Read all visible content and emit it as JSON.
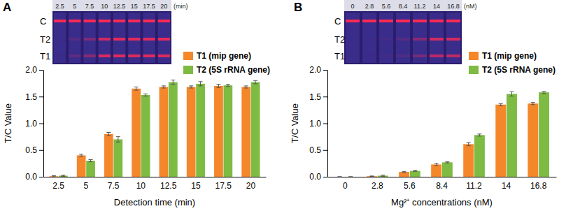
{
  "chart_data": [
    {
      "type": "bar",
      "title": "A",
      "x_label": "Detection time (min)",
      "y_label": "T/C Value",
      "categories": [
        "2.5",
        "5",
        "7.5",
        "10",
        "12.5",
        "15",
        "17.5",
        "20"
      ],
      "series": [
        {
          "name": "T1 (mip gene)",
          "color": "#f5872b",
          "values": [
            0.01,
            0.4,
            0.8,
            1.65,
            1.68,
            1.68,
            1.7,
            1.68
          ],
          "errors": [
            0.01,
            0.02,
            0.03,
            0.03,
            0.02,
            0.02,
            0.03,
            0.02
          ]
        },
        {
          "name": "T2 (5S rRNA gene)",
          "color": "#7dbb42",
          "values": [
            0.02,
            0.3,
            0.7,
            1.53,
            1.77,
            1.74,
            1.71,
            1.77
          ],
          "errors": [
            0.01,
            0.02,
            0.05,
            0.02,
            0.04,
            0.04,
            0.02,
            0.03
          ]
        }
      ],
      "ylim": [
        0,
        2
      ],
      "yticks": [
        {
          "value": 0,
          "label": "0.0"
        },
        0.5,
        {
          "value": 1,
          "label": "1.0"
        },
        1.5,
        {
          "value": 2,
          "label": "2.0"
        }
      ],
      "legend": "upper right",
      "inset": {
        "unit": "(min)",
        "bands": [
          "C",
          "T2",
          "T1"
        ]
      }
    },
    {
      "type": "bar",
      "title": "B",
      "x_label": "Mg²⁺ concentrations (nM)",
      "y_label": "T/C Value",
      "categories": [
        "0",
        "2.8",
        "5.6",
        "8.4",
        "11.2",
        "14",
        "16.8"
      ],
      "series": [
        {
          "name": "T1 (mip gene)",
          "color": "#f5872b",
          "values": [
            0,
            0.01,
            0.09,
            0.23,
            0.61,
            1.35,
            1.37
          ],
          "errors": [
            0,
            0.005,
            0.01,
            0.02,
            0.03,
            0.02,
            0.02
          ]
        },
        {
          "name": "T2 (5S rRNA gene)",
          "color": "#7dbb42",
          "values": [
            0,
            0.02,
            0.11,
            0.27,
            0.78,
            1.55,
            1.58
          ],
          "errors": [
            0,
            0.01,
            0.01,
            0.01,
            0.02,
            0.04,
            0.02
          ]
        }
      ],
      "ylim": [
        0,
        2
      ],
      "yticks": [
        {
          "value": 0,
          "label": "0.0"
        },
        0.5,
        {
          "value": 1,
          "label": "1.0"
        },
        1.5,
        {
          "value": 2,
          "label": "2.0"
        }
      ],
      "legend": "upper right",
      "inset": {
        "unit": "(nM)",
        "bands": [
          "C",
          "T2",
          "T1"
        ]
      }
    }
  ]
}
